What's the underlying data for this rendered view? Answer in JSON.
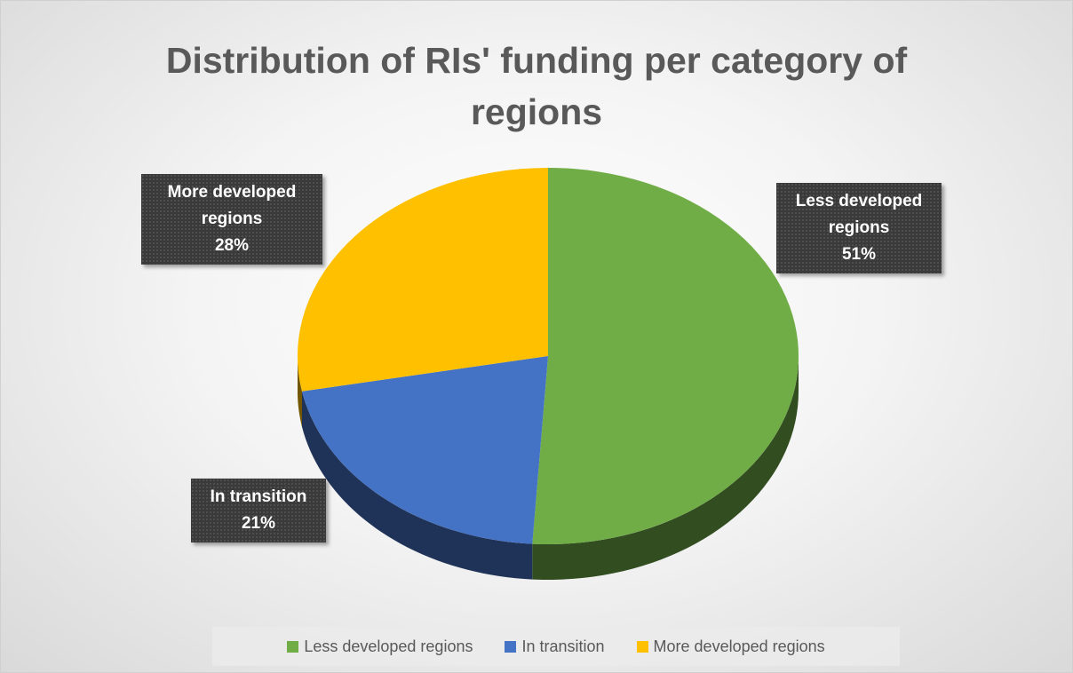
{
  "chart_data": {
    "type": "pie",
    "title": "Distribution of RIs' funding per category of regions",
    "categories": [
      "Less developed regions",
      "In transition",
      "More developed regions"
    ],
    "values": [
      51,
      21,
      28
    ],
    "value_labels": [
      "51%",
      "21%",
      "28%"
    ],
    "colors": [
      "#70ad47",
      "#4472c4",
      "#ffc000"
    ],
    "legend": "bottom"
  }
}
